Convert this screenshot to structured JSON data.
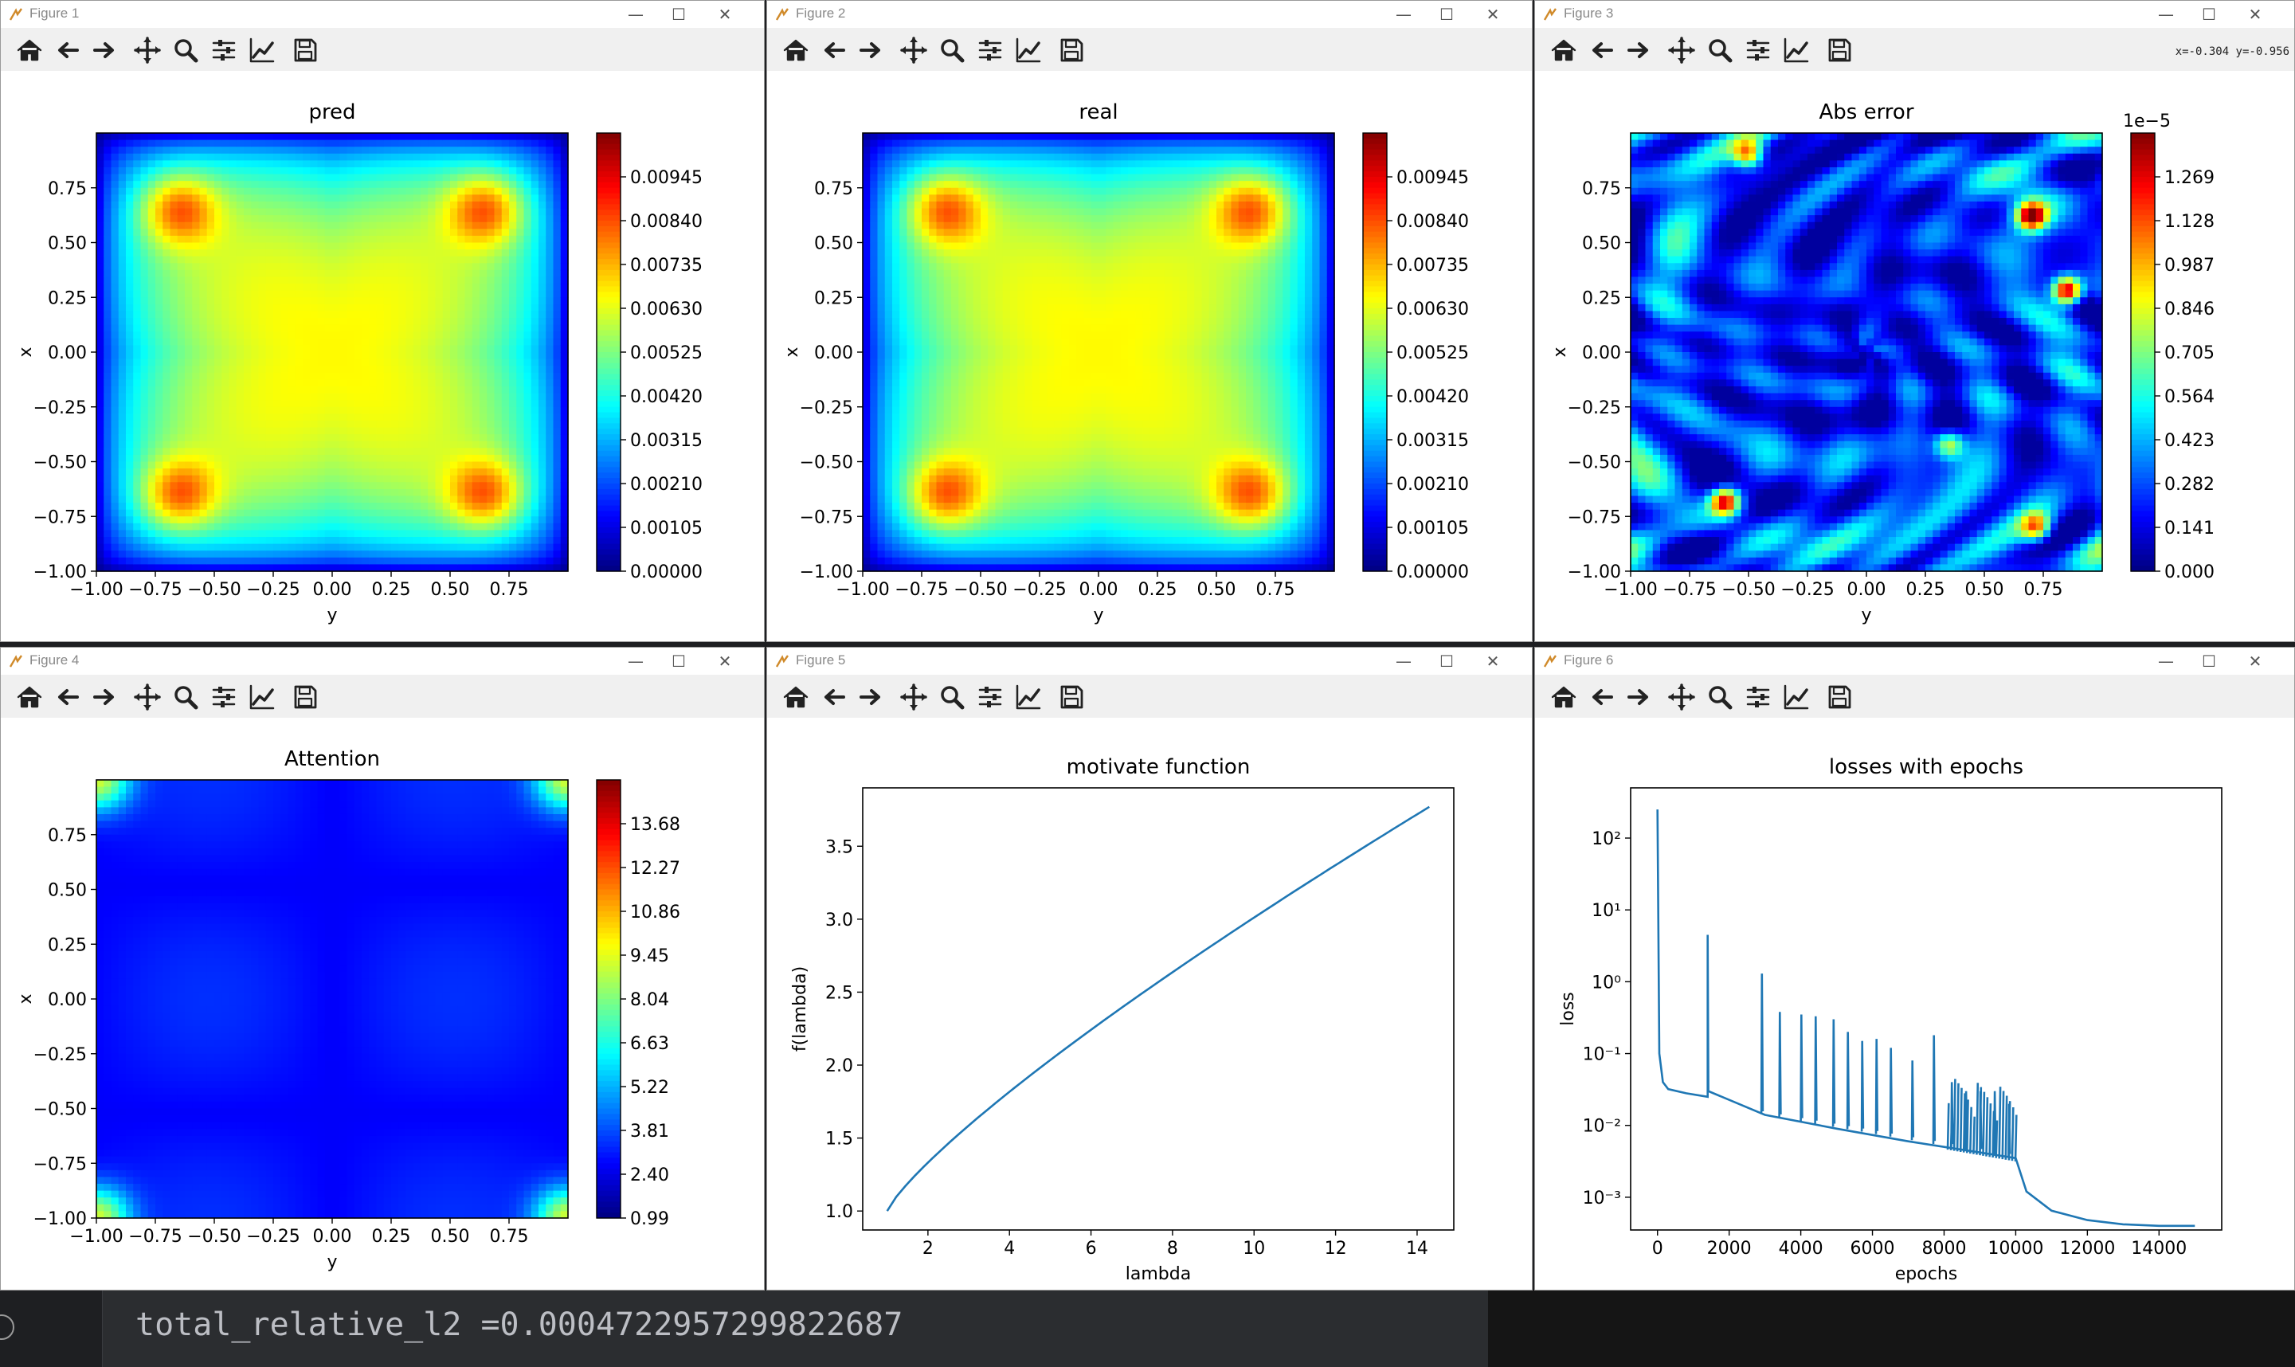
{
  "windows": [
    {
      "title": "Figure 1"
    },
    {
      "title": "Figure 2"
    },
    {
      "title": "Figure 3",
      "coord_readout": "x=-0.304 y=-0.956"
    },
    {
      "title": "Figure 4"
    },
    {
      "title": "Figure 5"
    },
    {
      "title": "Figure 6"
    }
  ],
  "toolbar_icons": [
    "home-icon",
    "back-arrow-icon",
    "forward-arrow-icon",
    "pan-icon",
    "zoom-icon",
    "configure-subplots-icon",
    "edit-axis-icon",
    "save-icon"
  ],
  "window_controls": {
    "minimize": "—",
    "maximize": "☐",
    "close": "✕"
  },
  "terminal": {
    "line": "total_relative_l2 =0.0004722957299822687"
  },
  "chart_data": [
    {
      "type": "heatmap",
      "title": "pred",
      "xlabel": "y",
      "ylabel": "x",
      "xticks": [
        "−1.00",
        "−0.75",
        "−0.50",
        "−0.25",
        "0.00",
        "0.25",
        "0.50",
        "0.75"
      ],
      "yticks": [
        "0.75",
        "0.50",
        "0.25",
        "0.00",
        "−0.25",
        "−0.50",
        "−0.75",
        "−1.00"
      ],
      "colorbar": {
        "ticks": [
          "0.00945",
          "0.00840",
          "0.00735",
          "0.00630",
          "0.00525",
          "0.00420",
          "0.00315",
          "0.00210",
          "0.00105",
          "0.00000"
        ],
        "range": [
          0,
          0.0105
        ],
        "colormap": "jet"
      }
    },
    {
      "type": "heatmap",
      "title": "real",
      "xlabel": "y",
      "ylabel": "x",
      "xticks": [
        "−1.00",
        "−0.75",
        "−0.50",
        "−0.25",
        "0.00",
        "0.25",
        "0.50",
        "0.75"
      ],
      "yticks": [
        "0.75",
        "0.50",
        "0.25",
        "0.00",
        "−0.25",
        "−0.50",
        "−0.75",
        "−1.00"
      ],
      "colorbar": {
        "ticks": [
          "0.00945",
          "0.00840",
          "0.00735",
          "0.00630",
          "0.00525",
          "0.00420",
          "0.00315",
          "0.00210",
          "0.00105",
          "0.00000"
        ],
        "range": [
          0,
          0.0105
        ],
        "colormap": "jet"
      }
    },
    {
      "type": "heatmap",
      "title": "Abs error",
      "xlabel": "y",
      "ylabel": "x",
      "xticks": [
        "−1.00",
        "−0.75",
        "−0.50",
        "−0.25",
        "0.00",
        "0.25",
        "0.50",
        "0.75"
      ],
      "yticks": [
        "0.75",
        "0.50",
        "0.25",
        "0.00",
        "−0.25",
        "−0.50",
        "−0.75",
        "−1.00"
      ],
      "colorbar": {
        "ticks": [
          "1.269",
          "1.128",
          "0.987",
          "0.846",
          "0.705",
          "0.564",
          "0.423",
          "0.282",
          "0.141",
          "0.000"
        ],
        "range": [
          0,
          1.41
        ],
        "offset": "1e−5",
        "colormap": "jet"
      }
    },
    {
      "type": "heatmap",
      "title": "Attention",
      "xlabel": "y",
      "ylabel": "x",
      "xticks": [
        "−1.00",
        "−0.75",
        "−0.50",
        "−0.25",
        "0.00",
        "0.25",
        "0.50",
        "0.75"
      ],
      "yticks": [
        "0.75",
        "0.50",
        "0.25",
        "0.00",
        "−0.25",
        "−0.50",
        "−0.75",
        "−1.00"
      ],
      "colorbar": {
        "ticks": [
          "13.68",
          "12.27",
          "10.86",
          "9.45",
          "8.04",
          "6.63",
          "5.22",
          "3.81",
          "2.40",
          "0.99"
        ],
        "range": [
          0.99,
          15.09
        ],
        "colormap": "jet"
      }
    },
    {
      "type": "line",
      "title": "motivate function",
      "xlabel": "lambda",
      "ylabel": "f(lambda)",
      "xlim": [
        0.4,
        14.9
      ],
      "ylim": [
        0.87,
        3.9
      ],
      "xticks": [
        "2",
        "4",
        "6",
        "8",
        "10",
        "12",
        "14"
      ],
      "yticks": [
        "1.0",
        "1.5",
        "2.0",
        "2.5",
        "3.0",
        "3.5"
      ],
      "x": [
        1.0,
        1.5,
        2.0,
        3.0,
        4.0,
        5.0,
        6.0,
        7.0,
        8.0,
        9.0,
        10.0,
        11.0,
        12.0,
        13.0,
        14.3
      ],
      "y": [
        1.0,
        1.15,
        1.28,
        1.52,
        1.72,
        1.91,
        2.08,
        2.25,
        2.42,
        2.58,
        2.74,
        2.89,
        3.04,
        3.19,
        3.77
      ],
      "color": "#1f77b4"
    },
    {
      "type": "line",
      "title": "losses with epochs",
      "xlabel": "epochs",
      "ylabel": "loss",
      "yscale": "log",
      "xlim": [
        -750,
        15750
      ],
      "ylim": [
        0.00035,
        500
      ],
      "xticks": [
        "0",
        "2000",
        "4000",
        "6000",
        "8000",
        "10000",
        "12000",
        "14000"
      ],
      "yticks": [
        "10²",
        "10¹",
        "10⁰",
        "10⁻¹",
        "10⁻²",
        "10⁻³"
      ],
      "x": [
        0,
        50,
        150,
        300,
        800,
        1400,
        1401,
        1420,
        3000,
        5000,
        7000,
        9000,
        10000,
        10300,
        11000,
        12000,
        13000,
        14000,
        15000
      ],
      "y": [
        250,
        0.1,
        0.04,
        0.032,
        0.028,
        0.025,
        4.5,
        0.03,
        0.014,
        0.009,
        0.006,
        0.0042,
        0.0035,
        0.0012,
        0.00065,
        0.00048,
        0.00042,
        0.0004,
        0.0004
      ],
      "spikes": [
        [
          2900,
          1.3
        ],
        [
          3400,
          0.38
        ],
        [
          4000,
          0.35
        ],
        [
          4400,
          0.33
        ],
        [
          4900,
          0.3
        ],
        [
          5300,
          0.2
        ],
        [
          5700,
          0.15
        ],
        [
          6100,
          0.16
        ],
        [
          6500,
          0.12
        ],
        [
          7100,
          0.08
        ],
        [
          7700,
          0.18
        ],
        [
          8200,
          0.04
        ],
        [
          8600,
          0.03
        ],
        [
          9000,
          0.03
        ],
        [
          9400,
          0.03
        ],
        [
          9800,
          0.02
        ]
      ],
      "color": "#1f77b4"
    }
  ]
}
